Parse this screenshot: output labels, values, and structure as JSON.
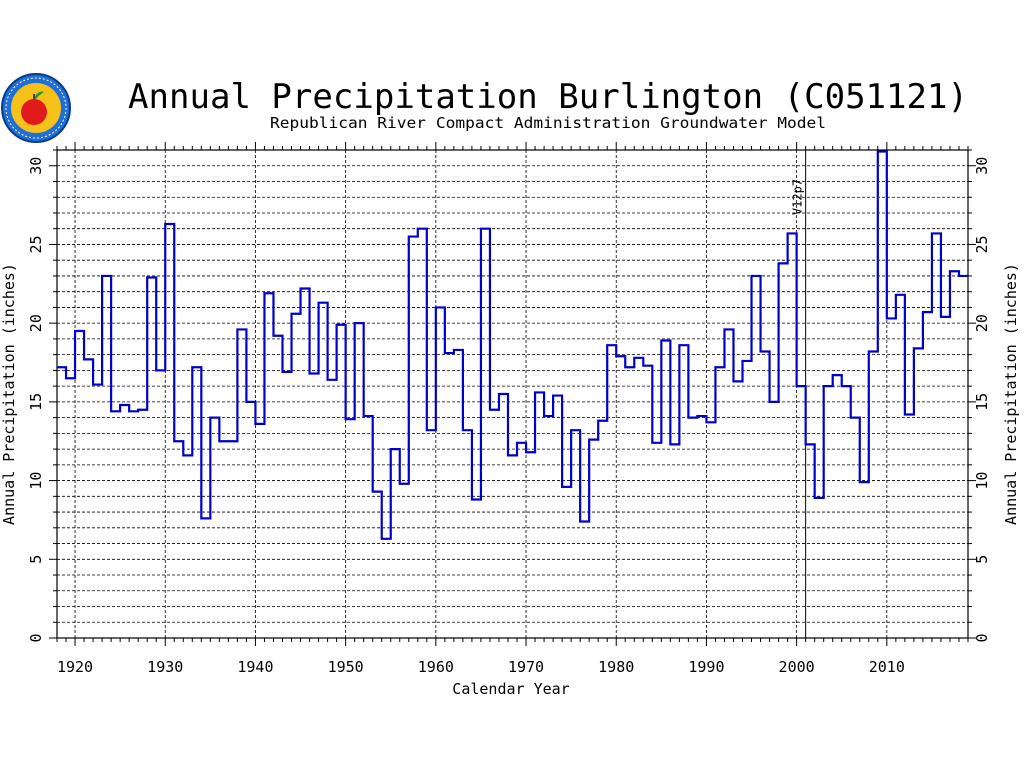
{
  "chart_data": {
    "type": "line",
    "step": true,
    "title": "Annual Precipitation Burlington (C051121)",
    "subtitle": "Republican River Compact Administration Groundwater Model",
    "xlabel": "Calendar Year",
    "ylabel": "Annual Precipitation (inches)",
    "xlim": [
      1918,
      2019
    ],
    "ylim": [
      0,
      31
    ],
    "xticks": [
      "1920",
      "1930",
      "1940",
      "1950",
      "1960",
      "1970",
      "1980",
      "1990",
      "2000",
      "2010"
    ],
    "yticks": [
      "0",
      "5",
      "10",
      "15",
      "20",
      "25",
      "30"
    ],
    "grid": true,
    "line_color": "#0000cc",
    "annotations": [
      {
        "x": 2001,
        "label": "V12p7"
      }
    ],
    "series": [
      {
        "x": [
          1918,
          1919,
          1920,
          1921,
          1922,
          1923,
          1924,
          1925,
          1926,
          1927,
          1928,
          1929,
          1930,
          1931,
          1932,
          1933,
          1934,
          1935,
          1936,
          1937,
          1938,
          1939,
          1940,
          1941,
          1942,
          1943,
          1944,
          1945,
          1946,
          1947,
          1948,
          1949,
          1950,
          1951,
          1952,
          1953,
          1954,
          1955,
          1956,
          1957,
          1958,
          1959,
          1960,
          1961,
          1962,
          1963,
          1964,
          1965,
          1966,
          1967,
          1968,
          1969,
          1970,
          1971,
          1972,
          1973,
          1974,
          1975,
          1976,
          1977,
          1978,
          1979,
          1980,
          1981,
          1982,
          1983,
          1984,
          1985,
          1986,
          1987,
          1988,
          1989,
          1990,
          1991,
          1992,
          1993,
          1994,
          1995,
          1996,
          1997,
          1998,
          1999,
          2000,
          2001,
          2002,
          2003,
          2004,
          2005,
          2006,
          2007,
          2008,
          2009,
          2010,
          2011,
          2012,
          2013,
          2014,
          2015,
          2016,
          2017,
          2018
        ],
        "values": [
          17.2,
          16.5,
          19.5,
          17.7,
          16.1,
          23.0,
          14.4,
          14.8,
          14.4,
          14.5,
          22.9,
          17.0,
          26.3,
          12.5,
          11.6,
          17.2,
          7.6,
          14.0,
          12.5,
          12.5,
          19.6,
          15.0,
          13.6,
          21.9,
          19.2,
          16.9,
          20.6,
          22.2,
          16.8,
          21.3,
          16.4,
          19.9,
          13.9,
          20.0,
          14.1,
          9.3,
          6.3,
          12.0,
          9.8,
          25.5,
          26.0,
          13.2,
          21.0,
          18.1,
          18.3,
          13.2,
          8.8,
          26.0,
          14.5,
          15.5,
          11.6,
          12.4,
          11.8,
          15.6,
          14.1,
          15.4,
          9.6,
          13.2,
          7.4,
          12.6,
          13.8,
          18.6,
          17.9,
          17.2,
          17.8,
          17.3,
          12.4,
          18.9,
          12.3,
          18.6,
          14.0,
          14.1,
          13.7,
          17.2,
          19.6,
          16.3,
          17.6,
          23.0,
          18.2,
          15.0,
          23.8,
          25.7,
          16.0,
          12.3,
          8.9,
          16.0,
          16.7,
          16.0,
          14.0,
          9.9,
          18.2,
          30.9,
          20.3,
          21.8,
          14.2,
          18.4,
          20.7,
          25.7,
          20.4,
          23.3,
          23.0
        ]
      }
    ]
  }
}
